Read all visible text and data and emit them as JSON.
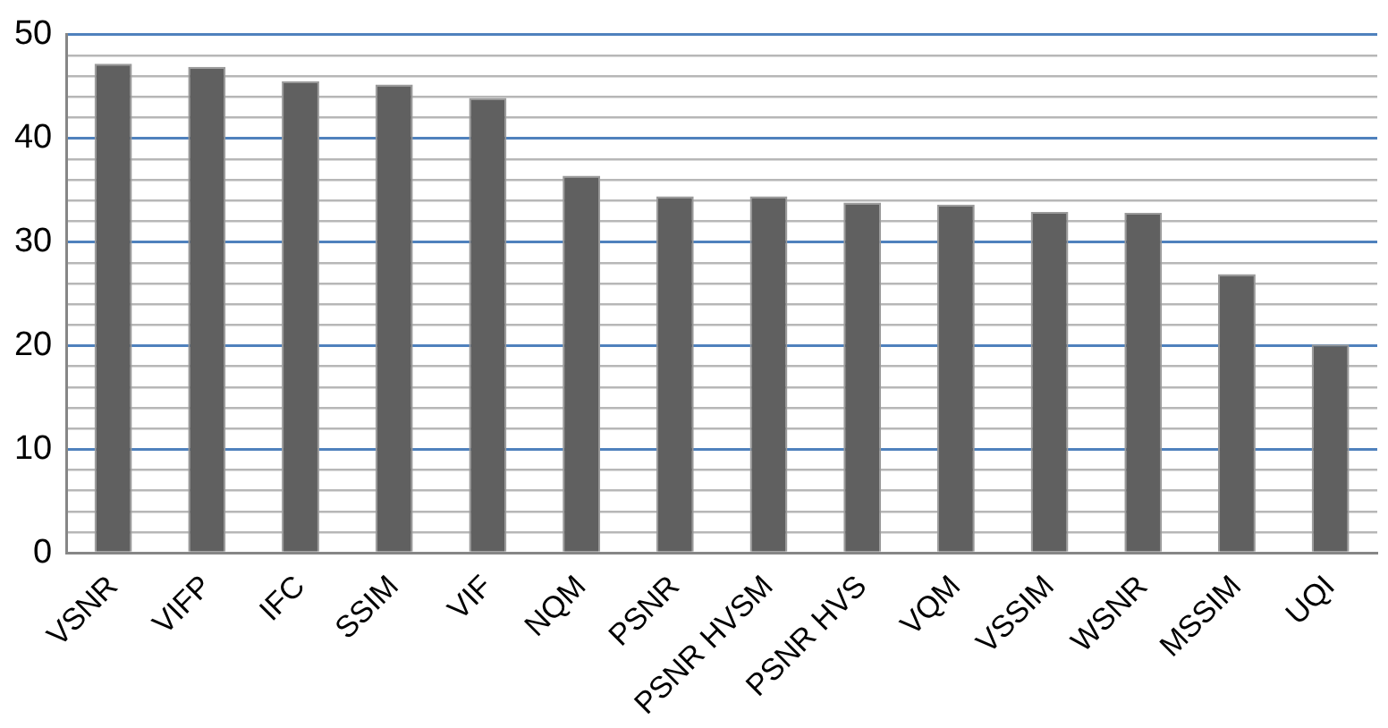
{
  "chart_data": {
    "type": "bar",
    "categories": [
      "VSNR",
      "VIFP",
      "IFC",
      "SSIM",
      "VIF",
      "NQM",
      "PSNR",
      "PSNR HVSM",
      "PSNR HVS",
      "VQM",
      "VSSIM",
      "WSNR",
      "MSSIM",
      "UQI"
    ],
    "values": [
      47.2,
      46.9,
      45.5,
      45.2,
      43.9,
      36.4,
      34.4,
      34.4,
      33.8,
      33.6,
      32.9,
      32.8,
      26.9,
      20.1
    ],
    "color": "#606060",
    "ylim": [
      0,
      50
    ],
    "yticks": [
      0,
      {
        "value": 2,
        "label": null
      },
      {
        "value": 4,
        "label": null
      },
      {
        "value": 6,
        "label": null
      },
      {
        "value": 8,
        "label": null
      },
      10,
      {
        "value": 12,
        "label": null
      },
      {
        "value": 14,
        "label": null
      },
      {
        "value": 16,
        "label": null
      },
      {
        "value": 18,
        "label": null
      },
      20,
      {
        "value": 22,
        "label": null
      },
      {
        "value": 24,
        "label": null
      },
      {
        "value": 26,
        "label": null
      },
      {
        "value": 28,
        "label": null
      },
      30,
      {
        "value": 32,
        "label": null
      },
      {
        "value": 34,
        "label": null
      },
      {
        "value": 36,
        "label": null
      },
      {
        "value": 38,
        "label": null
      },
      40,
      {
        "value": 42,
        "label": null
      },
      {
        "value": 44,
        "label": null
      },
      {
        "value": 46,
        "label": null
      },
      {
        "value": 48,
        "label": null
      },
      50
    ],
    "grid": "y"
  }
}
